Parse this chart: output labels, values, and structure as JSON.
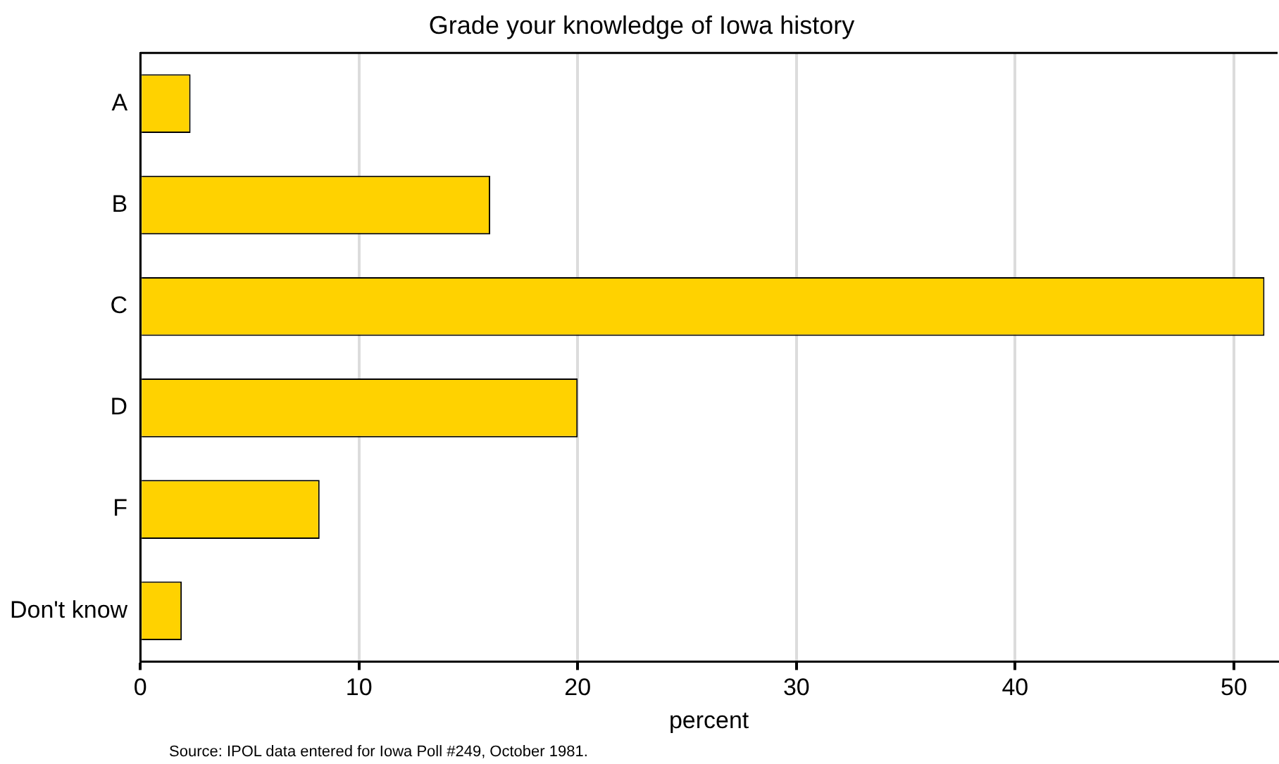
{
  "chart_data": {
    "type": "bar",
    "orientation": "horizontal",
    "title": "Grade your knowledge of Iowa history",
    "xlabel": "percent",
    "categories": [
      "A",
      "B",
      "C",
      "D",
      "F",
      "Don't know"
    ],
    "values": [
      2.3,
      16.0,
      51.4,
      20.0,
      8.2,
      1.9
    ],
    "color": "#ffd200",
    "xlim": [
      0,
      52
    ],
    "xticks": [
      0,
      10,
      20,
      30,
      40,
      50
    ],
    "grid": "x",
    "annotations": [
      "Source: IPOL data entered for Iowa Poll #249, October 1981."
    ]
  }
}
